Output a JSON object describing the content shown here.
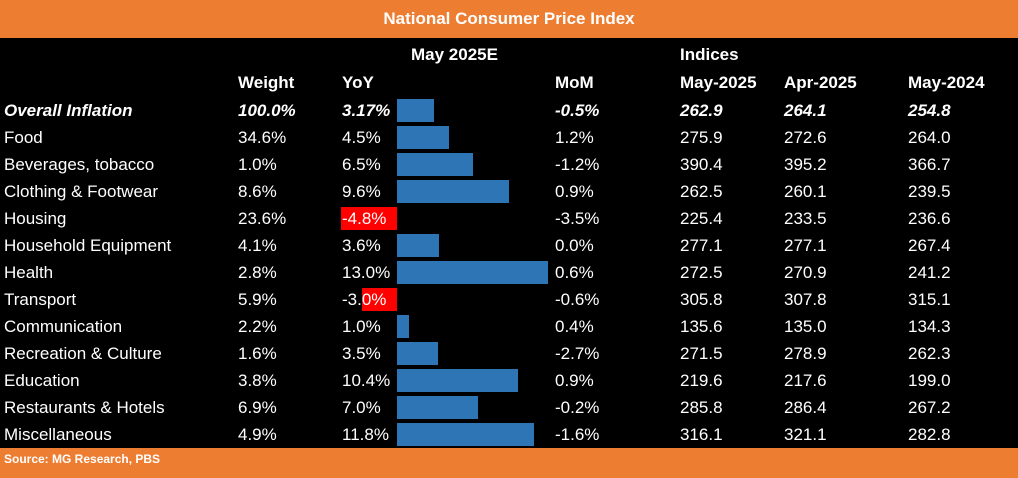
{
  "title": "National Consumer Price Index",
  "source": "Source: MG Research, PBS",
  "header": {
    "group_may": "May 2025E",
    "group_indices": "Indices",
    "weight": "Weight",
    "yoy": "YoY",
    "mom": "MoM",
    "may2025": "May-2025",
    "apr2025": "Apr-2025",
    "may2024": "May-2024"
  },
  "colors": {
    "title_bg": "#ed7d31",
    "positive_bar": "#2e75b6",
    "negative_bar": "#ff0000",
    "background": "#000000",
    "text": "#ffffff"
  },
  "chart_data": {
    "type": "table",
    "title": "National Consumer Price Index",
    "columns": [
      "Weight",
      "YoY",
      "MoM",
      "May-2025",
      "Apr-2025",
      "May-2024"
    ],
    "bar_scale_max": 13.0,
    "rows": [
      {
        "label": "Overall Inflation",
        "weight": "100.0%",
        "yoy": 3.17,
        "yoy_label": "3.17%",
        "mom": "-0.5%",
        "may2025": "262.9",
        "apr2025": "264.1",
        "may2024": "254.8",
        "overall": true
      },
      {
        "label": "Food",
        "weight": "34.6%",
        "yoy": 4.5,
        "yoy_label": "4.5%",
        "mom": "1.2%",
        "may2025": "275.9",
        "apr2025": "272.6",
        "may2024": "264.0"
      },
      {
        "label": "Beverages, tobacco",
        "weight": "1.0%",
        "yoy": 6.5,
        "yoy_label": "6.5%",
        "mom": "-1.2%",
        "may2025": "390.4",
        "apr2025": "395.2",
        "may2024": "366.7"
      },
      {
        "label": "Clothing & Footwear",
        "weight": "8.6%",
        "yoy": 9.6,
        "yoy_label": "9.6%",
        "mom": "0.9%",
        "may2025": "262.5",
        "apr2025": "260.1",
        "may2024": "239.5"
      },
      {
        "label": "Housing",
        "weight": "23.6%",
        "yoy": -4.8,
        "yoy_label": "-4.8%",
        "mom": "-3.5%",
        "may2025": "225.4",
        "apr2025": "233.5",
        "may2024": "236.6"
      },
      {
        "label": "Household Equipment",
        "weight": "4.1%",
        "yoy": 3.6,
        "yoy_label": "3.6%",
        "mom": "0.0%",
        "may2025": "277.1",
        "apr2025": "277.1",
        "may2024": "267.4"
      },
      {
        "label": "Health",
        "weight": "2.8%",
        "yoy": 13.0,
        "yoy_label": "13.0%",
        "mom": "0.6%",
        "may2025": "272.5",
        "apr2025": "270.9",
        "may2024": "241.2"
      },
      {
        "label": "Transport",
        "weight": "5.9%",
        "yoy": -3.0,
        "yoy_label": "-3.0%",
        "mom": "-0.6%",
        "may2025": "305.8",
        "apr2025": "307.8",
        "may2024": "315.1"
      },
      {
        "label": "Communication",
        "weight": "2.2%",
        "yoy": 1.0,
        "yoy_label": "1.0%",
        "mom": "0.4%",
        "may2025": "135.6",
        "apr2025": "135.0",
        "may2024": "134.3"
      },
      {
        "label": "Recreation & Culture",
        "weight": "1.6%",
        "yoy": 3.5,
        "yoy_label": "3.5%",
        "mom": "-2.7%",
        "may2025": "271.5",
        "apr2025": "278.9",
        "may2024": "262.3"
      },
      {
        "label": "Education",
        "weight": "3.8%",
        "yoy": 10.4,
        "yoy_label": "10.4%",
        "mom": "0.9%",
        "may2025": "219.6",
        "apr2025": "217.6",
        "may2024": "199.0"
      },
      {
        "label": "Restaurants & Hotels",
        "weight": "6.9%",
        "yoy": 7.0,
        "yoy_label": "7.0%",
        "mom": "-0.2%",
        "may2025": "285.8",
        "apr2025": "286.4",
        "may2024": "267.2"
      },
      {
        "label": "Miscellaneous",
        "weight": "4.9%",
        "yoy": 11.8,
        "yoy_label": "11.8%",
        "mom": "-1.6%",
        "may2025": "316.1",
        "apr2025": "321.1",
        "may2024": "282.8"
      }
    ]
  }
}
